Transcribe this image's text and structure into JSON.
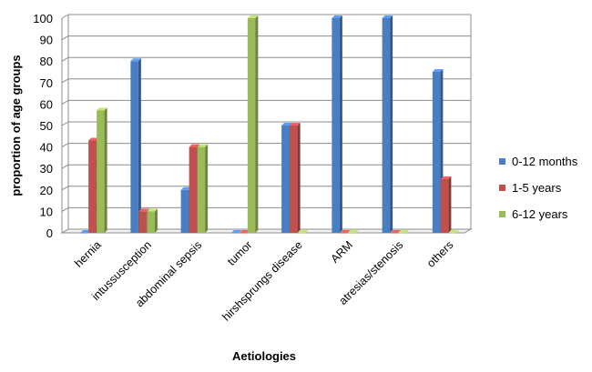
{
  "chart_data": {
    "type": "bar",
    "title": "",
    "xlabel": "Aetiologies",
    "ylabel": "proportion of age groups",
    "ylim": [
      0,
      100
    ],
    "yticks": [
      0,
      10,
      20,
      30,
      40,
      50,
      60,
      70,
      80,
      90,
      100
    ],
    "grid": true,
    "legend_position": "right",
    "categories": [
      "hernia",
      "intussusception",
      "abdominal sepsis",
      "tumor",
      "hirshsprungs disease",
      "ARM",
      "atresias/stenosis",
      "others"
    ],
    "series": [
      {
        "name": "0-12 months",
        "color": "#4a7ec4",
        "values": [
          0,
          80,
          20,
          0,
          50,
          100,
          100,
          75
        ]
      },
      {
        "name": "1-5 years",
        "color": "#c0504d",
        "values": [
          43,
          10,
          40,
          0,
          50,
          0,
          0,
          25
        ]
      },
      {
        "name": "6-12 years",
        "color": "#9bbb59",
        "values": [
          57,
          10,
          40,
          100,
          0,
          0,
          0,
          0
        ]
      }
    ]
  }
}
